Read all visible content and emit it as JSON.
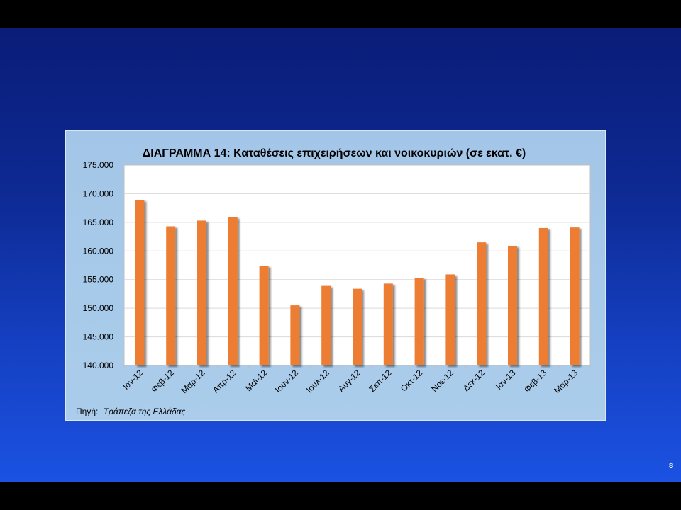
{
  "slide": {
    "number": "8"
  },
  "chart_data": {
    "type": "bar",
    "title": "ΔΙΑΓΡΑΜΜΑ 14: Καταθέσεις επιχειρήσεων και νοικοκυριών (σε εκατ. €)",
    "categories": [
      "Ιαν-12",
      "Φεβ-12",
      "Μαρ-12",
      "Απρ-12",
      "Μαϊ-12",
      "Ιουν-12",
      "Ιουλ-12",
      "Αυγ-12",
      "Σεπ-12",
      "Οκτ-12",
      "Νοε-12",
      "Δεκ-12",
      "Ιαν-13",
      "Φεβ-13",
      "Μαρ-13"
    ],
    "values": [
      168900,
      164300,
      165300,
      165900,
      157400,
      150500,
      153900,
      153400,
      154300,
      155300,
      155900,
      161500,
      160900,
      164000,
      164100
    ],
    "ylim": [
      140000,
      175000
    ],
    "y_ticks": [
      140000,
      145000,
      150000,
      155000,
      160000,
      165000,
      170000,
      175000
    ],
    "y_tick_labels": [
      "140.000",
      "145.000",
      "150.000",
      "155.000",
      "160.000",
      "165.000",
      "170.000",
      "175.000"
    ],
    "grid": true,
    "legend": false,
    "bar_color": "#ed7d31"
  },
  "source": {
    "label": "Πηγή:",
    "text": "Τράπεζα της Ελλάδας"
  }
}
